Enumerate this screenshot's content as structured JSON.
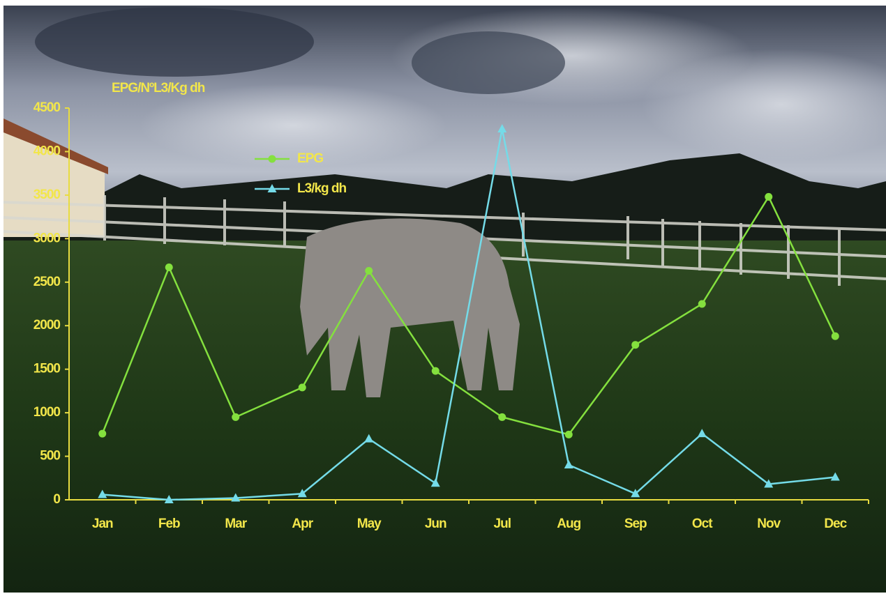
{
  "chart_data": {
    "type": "line",
    "title": "EPG/NºL3/Kg dh",
    "categories": [
      "Jan",
      "Feb",
      "Mar",
      "Apr",
      "May",
      "Jun",
      "Jul",
      "Aug",
      "Sep",
      "Oct",
      "Nov",
      "Dec"
    ],
    "series": [
      {
        "name": "EPG",
        "color": "#84e03e",
        "marker": "circle",
        "values": [
          760,
          2670,
          950,
          1290,
          2630,
          1480,
          950,
          750,
          1780,
          2250,
          3480,
          1880
        ]
      },
      {
        "name": "L3/kg dh",
        "color": "#74dbe8",
        "marker": "triangle",
        "values": [
          60,
          0,
          20,
          70,
          700,
          190,
          4260,
          400,
          70,
          760,
          180,
          260
        ]
      }
    ],
    "ylim": [
      0,
      4500
    ],
    "yticks": [
      0,
      500,
      1000,
      1500,
      2000,
      2500,
      3000,
      3500,
      4000,
      4500
    ],
    "grid": false
  }
}
